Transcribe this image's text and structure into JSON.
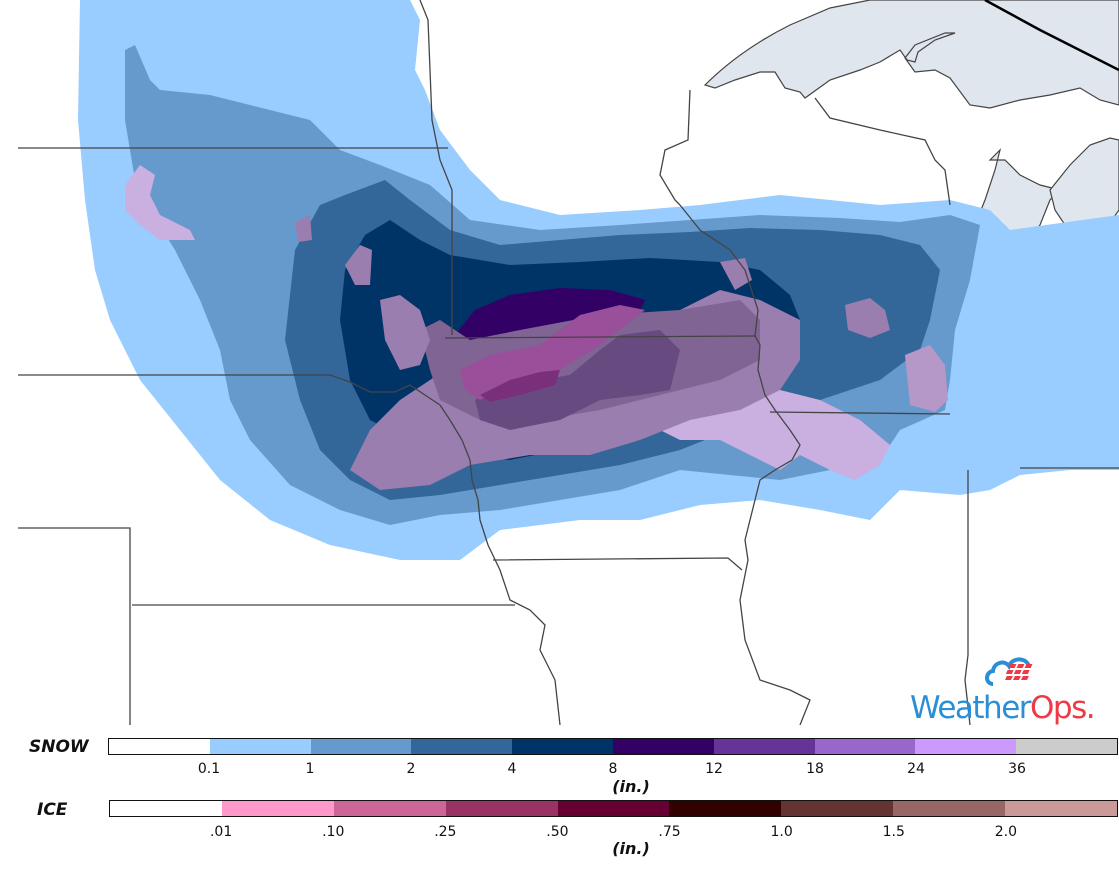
{
  "map": {
    "region": "Upper Midwest / Great Lakes",
    "colors": {
      "land": "#ffffff",
      "lake": "#dfe6ee",
      "state_line": "#444444",
      "snow_0_1": "#99ccff",
      "snow_1": "#6699cc",
      "snow_2": "#336699",
      "snow_4": "#003366",
      "snow_8": "#330066",
      "ice_overlay_light": "#c9b0e0",
      "ice_overlay_mid": "#9a7eb0",
      "ice_overlay_dark": "#7f6494",
      "ice_core": "#664a80",
      "mixed_magenta": "#9a4f9a",
      "mixed_deep": "#7a2f7a"
    }
  },
  "legend": {
    "snow": {
      "title": "SNOW",
      "units": "(in.)",
      "segments": [
        {
          "color": "#ffffff",
          "label": ""
        },
        {
          "color": "#99ccff",
          "label": "0.1"
        },
        {
          "color": "#6699cc",
          "label": "1"
        },
        {
          "color": "#336699",
          "label": "2"
        },
        {
          "color": "#003366",
          "label": "4"
        },
        {
          "color": "#330066",
          "label": "8"
        },
        {
          "color": "#663399",
          "label": "12"
        },
        {
          "color": "#9966cc",
          "label": "18"
        },
        {
          "color": "#cc99ff",
          "label": "24"
        },
        {
          "color": "#cccccc",
          "label": "36"
        }
      ]
    },
    "ice": {
      "title": "ICE",
      "units": "(in.)",
      "segments": [
        {
          "color": "#ffffff",
          "label": ""
        },
        {
          "color": "#ff99cc",
          "label": ".01"
        },
        {
          "color": "#cc6699",
          "label": ".10"
        },
        {
          "color": "#993366",
          "label": ".25"
        },
        {
          "color": "#660033",
          "label": ".50"
        },
        {
          "color": "#330000",
          "label": ".75"
        },
        {
          "color": "#663333",
          "label": "1.0"
        },
        {
          "color": "#996666",
          "label": "1.5"
        },
        {
          "color": "#cc9999",
          "label": "2.0"
        }
      ]
    }
  },
  "logo": {
    "text_part1": "Weather",
    "text_part2": "Ops",
    "suffix": ".",
    "blue": "#2a8fd6",
    "red": "#ee3a45"
  }
}
